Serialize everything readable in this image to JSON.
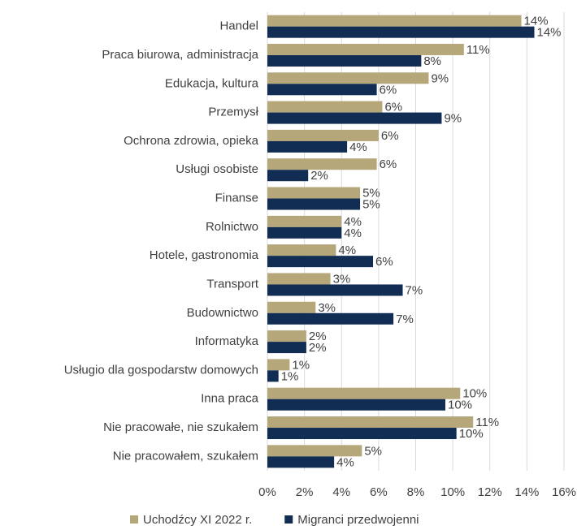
{
  "chart_data": {
    "type": "hbar",
    "categories": [
      "Handel",
      "Praca biurowa, administracja",
      "Edukacja, kultura",
      "Przemysł",
      "Ochrona zdrowia, opieka",
      "Usługi osobiste",
      "Finanse",
      "Rolnictwo",
      "Hotele, gastronomia",
      "Transport",
      "Budownictwo",
      "Informatyka",
      "Usługio dla gospodarstw domowych",
      "Inna praca",
      "Nie pracowałe, nie szukałem",
      "Nie pracowałem, szukałem"
    ],
    "series": [
      {
        "name": "Uchodźcy XI 2022 r.",
        "color": "#b5a77a",
        "values": [
          13.7,
          10.6,
          8.7,
          6.2,
          6.0,
          5.9,
          5.0,
          4.0,
          3.7,
          3.4,
          2.6,
          2.1,
          1.2,
          10.4,
          11.1,
          5.1
        ],
        "value_labels": [
          "14%",
          "11%",
          "9%",
          "6%",
          "6%",
          "6%",
          "5%",
          "4%",
          "4%",
          "3%",
          "3%",
          "2%",
          "1%",
          "10%",
          "11%",
          "5%"
        ]
      },
      {
        "name": "Migranci przedwojenni",
        "color": "#112d53",
        "values": [
          14.4,
          8.3,
          5.9,
          9.4,
          4.3,
          2.2,
          5.0,
          4.0,
          5.7,
          7.3,
          6.8,
          2.1,
          0.6,
          9.6,
          10.2,
          3.6
        ],
        "value_labels": [
          "14%",
          "8%",
          "6%",
          "9%",
          "4%",
          "2%",
          "5%",
          "4%",
          "6%",
          "7%",
          "7%",
          "2%",
          "1%",
          "10%",
          "10%",
          "4%"
        ]
      }
    ],
    "xlim": [
      0,
      16
    ],
    "xticks": [
      {
        "value": 0,
        "label": "0%"
      },
      {
        "value": 2,
        "label": "2%"
      },
      {
        "value": 4,
        "label": "4%"
      },
      {
        "value": 6,
        "label": "6%"
      },
      {
        "value": 8,
        "label": "8%"
      },
      {
        "value": 10,
        "label": "10%"
      },
      {
        "value": 12,
        "label": "12%"
      },
      {
        "value": 14,
        "label": "14%"
      },
      {
        "value": 16,
        "label": "16%"
      }
    ],
    "grid": true,
    "legend": "bottom"
  }
}
